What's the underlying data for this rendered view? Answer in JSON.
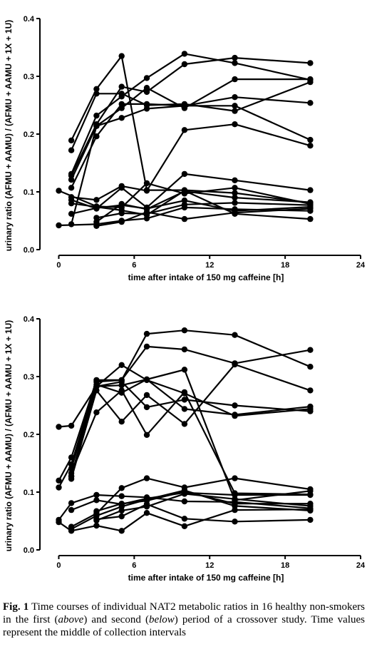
{
  "chart_data": [
    {
      "type": "line",
      "period": "first",
      "xlabel": "time after intake of 150 mg caffeine [h]",
      "ylabel": "urinary ratio (AFMU + AAMU) / (AFMU + AAMU + 1X + 1U)",
      "xlim": [
        -1.5,
        24
      ],
      "ylim": [
        0,
        0.4
      ],
      "xticks": [
        0,
        6,
        12,
        18,
        24
      ],
      "yticks": [
        0.0,
        0.1,
        0.2,
        0.3,
        0.4
      ],
      "xticklabels": [
        "0",
        "6",
        "12",
        "18",
        "24"
      ],
      "yticklabels": [
        "0.0",
        "0.1",
        "0.2",
        "0.3",
        "0.4"
      ],
      "grid": false,
      "series": [
        {
          "x": [
            1,
            3,
            5,
            7,
            10,
            14,
            20
          ],
          "y": [
            0.189,
            0.278,
            0.335,
            0.103,
            0.103,
            0.098,
            0.081
          ]
        },
        {
          "x": [
            1,
            3,
            5,
            7,
            10,
            14,
            20
          ],
          "y": [
            0.172,
            0.27,
            0.27,
            0.25,
            0.252,
            0.24,
            0.29
          ]
        },
        {
          "x": [
            1,
            3,
            5,
            7,
            10,
            14,
            20
          ],
          "y": [
            0.131,
            0.232,
            0.265,
            0.297,
            0.339,
            0.323,
            0.294
          ]
        },
        {
          "x": [
            1,
            3,
            5,
            7,
            10,
            14,
            20
          ],
          "y": [
            0.128,
            0.217,
            0.282,
            0.273,
            0.321,
            0.332,
            0.323
          ]
        },
        {
          "x": [
            1,
            3,
            5,
            7,
            10,
            14,
            20
          ],
          "y": [
            0.121,
            0.214,
            0.245,
            0.28,
            0.245,
            0.295,
            0.295
          ]
        },
        {
          "x": [
            1,
            3,
            5,
            7,
            10,
            14,
            20
          ],
          "y": [
            0.107,
            0.196,
            0.252,
            0.252,
            0.249,
            0.264,
            0.254
          ]
        },
        {
          "x": [
            1,
            3,
            5,
            7,
            10,
            14,
            20
          ],
          "y": [
            0.044,
            0.214,
            0.228,
            0.244,
            0.249,
            0.249,
            0.19
          ]
        },
        {
          "x": [
            1,
            3,
            5,
            7,
            10,
            14,
            20
          ],
          "y": [
            0.091,
            0.086,
            0.11,
            0.102,
            0.207,
            0.217,
            0.18
          ]
        },
        {
          "x": [
            1,
            3,
            5,
            7,
            10,
            14,
            20
          ],
          "y": [
            0.086,
            0.071,
            0.107,
            0.073,
            0.131,
            0.12,
            0.103
          ]
        },
        {
          "x": [
            0,
            3,
            5,
            7,
            10,
            14,
            20
          ],
          "y": [
            0.102,
            0.075,
            0.073,
            0.115,
            0.097,
            0.107,
            0.079
          ]
        },
        {
          "x": [
            0,
            3,
            5,
            7,
            10,
            14,
            20
          ],
          "y": [
            0.042,
            0.044,
            0.05,
            0.054,
            0.073,
            0.07,
            0.067
          ]
        },
        {
          "x": [
            1,
            3,
            5,
            7,
            10,
            14,
            20
          ],
          "y": [
            0.08,
            0.074,
            0.068,
            0.06,
            0.102,
            0.062,
            0.053
          ]
        },
        {
          "x": [
            1,
            3,
            5,
            7,
            10,
            14,
            20
          ],
          "y": [
            0.062,
            0.072,
            0.077,
            0.071,
            0.085,
            0.067,
            0.074
          ]
        },
        {
          "x": [
            3,
            5,
            7,
            10,
            14,
            20
          ],
          "y": [
            0.048,
            0.079,
            0.07,
            0.101,
            0.09,
            0.082
          ]
        },
        {
          "x": [
            3,
            5,
            7,
            10,
            14,
            20
          ],
          "y": [
            0.055,
            0.063,
            0.062,
            0.078,
            0.081,
            0.077
          ]
        },
        {
          "x": [
            3,
            5,
            7,
            10,
            14,
            20
          ],
          "y": [
            0.041,
            0.048,
            0.065,
            0.053,
            0.064,
            0.071
          ]
        }
      ]
    },
    {
      "type": "line",
      "period": "second",
      "xlabel": "time after intake of 150 mg caffeine [h]",
      "ylabel": "urinary ratio (AFMU + AAMU) / (AFMU + AAMU + 1X + 1U)",
      "xlim": [
        -1.5,
        24
      ],
      "ylim": [
        0,
        0.4
      ],
      "xticks": [
        0,
        6,
        12,
        18,
        24
      ],
      "yticks": [
        0.0,
        0.1,
        0.2,
        0.3,
        0.4
      ],
      "xticklabels": [
        "0",
        "6",
        "12",
        "18",
        "24"
      ],
      "yticklabels": [
        "0.0",
        "0.1",
        "0.2",
        "0.3",
        "0.4"
      ],
      "grid": false,
      "series": [
        {
          "x": [
            0,
            1,
            3,
            5,
            7,
            10,
            14,
            20
          ],
          "y": [
            0.213,
            0.215,
            0.283,
            0.32,
            0.294,
            0.271,
            0.232,
            0.244
          ]
        },
        {
          "x": [
            0,
            1,
            3,
            5,
            7,
            10,
            14,
            20
          ],
          "y": [
            0.12,
            0.16,
            0.294,
            0.294,
            0.374,
            0.38,
            0.372,
            0.317
          ]
        },
        {
          "x": [
            0,
            1,
            3,
            5,
            7,
            10,
            14,
            20
          ],
          "y": [
            0.108,
            0.148,
            0.291,
            0.294,
            0.352,
            0.347,
            0.323,
            0.346
          ]
        },
        {
          "x": [
            1,
            3,
            5,
            7,
            10,
            14,
            20
          ],
          "y": [
            0.141,
            0.283,
            0.291,
            0.247,
            0.26,
            0.25,
            0.24
          ]
        },
        {
          "x": [
            1,
            3,
            5,
            7,
            10,
            14,
            20
          ],
          "y": [
            0.133,
            0.238,
            0.276,
            0.199,
            0.273,
            0.098,
            0.096
          ]
        },
        {
          "x": [
            1,
            3,
            5,
            7,
            10,
            14,
            20
          ],
          "y": [
            0.128,
            0.286,
            0.272,
            0.295,
            0.244,
            0.234,
            0.248
          ]
        },
        {
          "x": [
            1,
            3,
            5,
            7,
            10,
            14,
            20
          ],
          "y": [
            0.127,
            0.283,
            0.285,
            0.295,
            0.312,
            0.086,
            0.102
          ]
        },
        {
          "x": [
            1,
            3,
            5,
            7,
            10,
            14,
            20
          ],
          "y": [
            0.123,
            0.276,
            0.222,
            0.268,
            0.218,
            0.321,
            0.276
          ]
        },
        {
          "x": [
            0,
            1,
            3,
            5,
            7,
            10,
            14,
            20
          ],
          "y": [
            0.052,
            0.081,
            0.095,
            0.093,
            0.091,
            0.084,
            0.083,
            0.072
          ]
        },
        {
          "x": [
            1,
            3,
            5,
            7,
            10,
            14,
            20
          ],
          "y": [
            0.069,
            0.086,
            0.079,
            0.089,
            0.099,
            0.095,
            0.095
          ]
        },
        {
          "x": [
            1,
            3,
            5,
            7,
            10,
            14,
            20
          ],
          "y": [
            0.04,
            0.063,
            0.107,
            0.124,
            0.108,
            0.124,
            0.105
          ]
        },
        {
          "x": [
            1,
            3,
            5,
            7,
            10,
            14,
            20
          ],
          "y": [
            0.036,
            0.059,
            0.075,
            0.087,
            0.103,
            0.076,
            0.068
          ]
        },
        {
          "x": [
            0,
            1,
            3,
            5,
            7,
            10,
            14,
            20
          ],
          "y": [
            0.048,
            0.033,
            0.042,
            0.033,
            0.064,
            0.041,
            0.069,
            0.07
          ]
        },
        {
          "x": [
            3,
            5,
            7,
            10,
            14,
            20
          ],
          "y": [
            0.051,
            0.068,
            0.075,
            0.097,
            0.088,
            0.076
          ]
        },
        {
          "x": [
            3,
            5,
            7,
            10,
            14,
            20
          ],
          "y": [
            0.067,
            0.08,
            0.085,
            0.101,
            0.08,
            0.08
          ]
        },
        {
          "x": [
            3,
            5,
            7,
            10,
            14,
            20
          ],
          "y": [
            0.053,
            0.058,
            0.079,
            0.054,
            0.049,
            0.052
          ]
        }
      ]
    }
  ],
  "caption": {
    "fig_label": "Fig. 1",
    "text_1": " Time courses of individual NAT2 metabolic ratios in 16 healthy non-smokers in the first (",
    "em_1": "above",
    "text_2": ") and second (",
    "em_2": "below",
    "text_3": ") period of a crossover study. Time values represent the middle of collection intervals"
  }
}
